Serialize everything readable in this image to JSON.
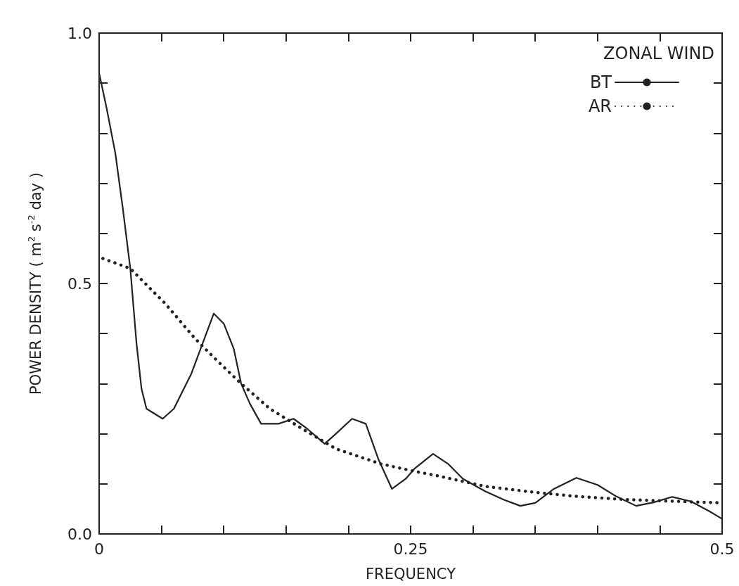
{
  "chart_data": {
    "type": "line",
    "xlabel": "FREQUENCY",
    "ylabel": "POWER DENSITY ( m$^{2}$ s$^{-2}$ day )",
    "legend_title": "ZONAL WIND",
    "legend": "top right",
    "grid": false,
    "marker": "none",
    "xlim": [
      0,
      0.5
    ],
    "xticks": [
      {
        "value": 0,
        "label": "0"
      },
      {
        "value": 0.05,
        "label": null
      },
      {
        "value": 0.1,
        "label": null
      },
      {
        "value": 0.15,
        "label": null
      },
      {
        "value": 0.2,
        "label": null
      },
      {
        "value": 0.25,
        "label": "0.25"
      },
      {
        "value": 0.3,
        "label": null
      },
      {
        "value": 0.35,
        "label": null
      },
      {
        "value": 0.4,
        "label": null
      },
      {
        "value": 0.45,
        "label": null
      },
      {
        "value": 0.5,
        "label": "0.5"
      }
    ],
    "ylim": [
      0,
      1
    ],
    "yticks": [
      {
        "value": 0,
        "label": "0.0"
      },
      {
        "value": 0.1,
        "label": null
      },
      {
        "value": 0.2,
        "label": null
      },
      {
        "value": 0.3,
        "label": null
      },
      {
        "value": 0.4,
        "label": null
      },
      {
        "value": 0.5,
        "label": "0.5"
      },
      {
        "value": 0.6,
        "label": null
      },
      {
        "value": 0.7,
        "label": null
      },
      {
        "value": 0.8,
        "label": null
      },
      {
        "value": 0.9,
        "label": null
      },
      {
        "value": 1,
        "label": "1.0"
      }
    ],
    "series": [
      {
        "name": "BT",
        "color": "#222222",
        "line_style": "solid",
        "x": [
          0,
          0.006,
          0.013,
          0.019,
          0.025,
          0.03,
          0.034,
          0.038,
          0.051,
          0.06,
          0.074,
          0.083,
          0.092,
          0.1,
          0.108,
          0.114,
          0.121,
          0.13,
          0.144,
          0.156,
          0.167,
          0.181,
          0.19,
          0.203,
          0.214,
          0.224,
          0.235,
          0.246,
          0.253,
          0.268,
          0.28,
          0.292,
          0.31,
          0.325,
          0.338,
          0.35,
          0.365,
          0.383,
          0.4,
          0.415,
          0.431,
          0.445,
          0.46,
          0.475,
          0.49,
          0.5
        ],
        "values": [
          0.92,
          0.85,
          0.76,
          0.65,
          0.53,
          0.38,
          0.29,
          0.25,
          0.23,
          0.25,
          0.32,
          0.38,
          0.44,
          0.42,
          0.37,
          0.3,
          0.26,
          0.22,
          0.22,
          0.23,
          0.21,
          0.18,
          0.2,
          0.23,
          0.22,
          0.15,
          0.09,
          0.11,
          0.13,
          0.16,
          0.14,
          0.11,
          0.085,
          0.068,
          0.056,
          0.062,
          0.09,
          0.112,
          0.098,
          0.075,
          0.056,
          0.063,
          0.074,
          0.065,
          0.045,
          0.03
        ]
      },
      {
        "name": "AR",
        "color": "#222222",
        "line_style": "dotted",
        "x": [
          0.003,
          0.025,
          0.053,
          0.077,
          0.093,
          0.114,
          0.137,
          0.163,
          0.19,
          0.226,
          0.253,
          0.27,
          0.31,
          0.35,
          0.383,
          0.42,
          0.452,
          0.5
        ],
        "values": [
          0.55,
          0.53,
          0.46,
          0.39,
          0.35,
          0.3,
          0.25,
          0.21,
          0.17,
          0.14,
          0.125,
          0.117,
          0.095,
          0.083,
          0.075,
          0.069,
          0.066,
          0.062
        ]
      }
    ]
  }
}
